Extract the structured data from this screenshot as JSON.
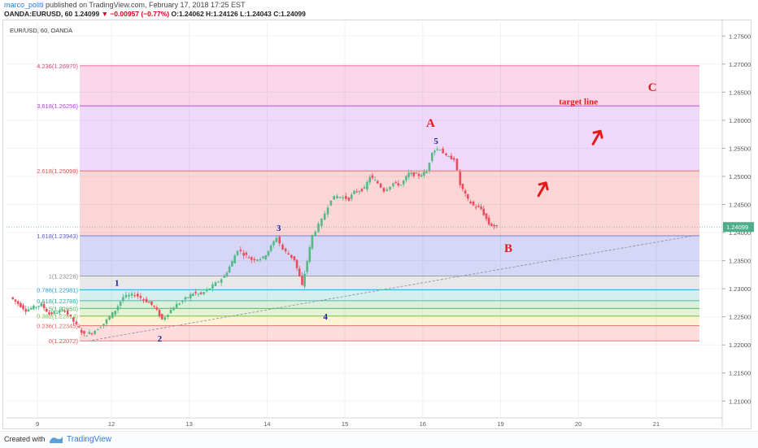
{
  "header": {
    "author": "marco_politi",
    "published": " published on TradingView.com, February 17, 2018 17:25 EST",
    "symbol": "OANDA:EURUSD, 60",
    "last": "1.24099",
    "change": "▼ −0.00957 (−0.77%)",
    "ohlc": "O:1.24062 H:1.24126 L:1.24043 C:1.24099"
  },
  "footer": {
    "created": "Created with",
    "brand": "TradingView"
  },
  "chart_data": {
    "type": "candlestick",
    "title": "EUR/USD, 60, OANDA",
    "ylim": [
      1.207,
      1.2775
    ],
    "y_ticks": [
      "1.27500",
      "1.27000",
      "1.26500",
      "1.26000",
      "1.25500",
      "1.25000",
      "1.24500",
      "1.24000",
      "1.23500",
      "1.23000",
      "1.22500",
      "1.22000",
      "1.21500",
      "1.21000"
    ],
    "x_ticks": [
      {
        "label": "9",
        "pos": -0.95
      },
      {
        "label": "12",
        "pos": 0
      },
      {
        "label": "13",
        "pos": 1
      },
      {
        "label": "14",
        "pos": 2
      },
      {
        "label": "15",
        "pos": 3
      },
      {
        "label": "16",
        "pos": 4
      },
      {
        "label": "19",
        "pos": 5
      },
      {
        "label": "20",
        "pos": 6
      },
      {
        "label": "21",
        "pos": 7
      }
    ],
    "last_price": {
      "label": "1.24099",
      "value": 1.24099,
      "color": "#4caf8a"
    },
    "fib_levels": [
      {
        "label": "0(1.22072)",
        "value": 1.22072,
        "color": "#e05050"
      },
      {
        "label": "0.236(1.22345)",
        "value": 1.22345,
        "color": "#e06060"
      },
      {
        "label": "0.382(1.22514)",
        "value": 1.22514,
        "color": "#7cbf3a"
      },
      {
        "label": "0.5(1.22650)",
        "value": 1.2265,
        "color": "#4caf50"
      },
      {
        "label": "0.618(1.22786)",
        "value": 1.22786,
        "color": "#26a69a"
      },
      {
        "label": "0.786(1.22981)",
        "value": 1.22981,
        "color": "#29a3c9"
      },
      {
        "label": "1(1.23228)",
        "value": 1.23228,
        "color": "#888888"
      },
      {
        "label": "1.618(1.23943)",
        "value": 1.23943,
        "color": "#5a5ad6"
      },
      {
        "label": "2.618(1.25099)",
        "value": 1.25099,
        "color": "#e05050"
      },
      {
        "label": "3.618(1.26256)",
        "value": 1.26256,
        "color": "#b03ad6"
      },
      {
        "label": "4.236(1.26970)",
        "value": 1.2697,
        "color": "#e0407a"
      }
    ],
    "fib_bands": [
      {
        "from": 1.22072,
        "to": 1.22345,
        "color": "rgba(240,80,80,0.20)"
      },
      {
        "from": 1.22345,
        "to": 1.22514,
        "color": "rgba(235,200,60,0.22)"
      },
      {
        "from": 1.22514,
        "to": 1.2265,
        "color": "rgba(120,200,60,0.22)"
      },
      {
        "from": 1.2265,
        "to": 1.22786,
        "color": "rgba(80,190,90,0.22)"
      },
      {
        "from": 1.22786,
        "to": 1.22981,
        "color": "rgba(60,180,170,0.22)"
      },
      {
        "from": 1.22981,
        "to": 1.23228,
        "color": "rgba(150,150,150,0.22)"
      },
      {
        "from": 1.23228,
        "to": 1.23943,
        "color": "rgba(90,90,220,0.25)"
      },
      {
        "from": 1.23943,
        "to": 1.25099,
        "color": "rgba(235,90,90,0.25)"
      },
      {
        "from": 1.25099,
        "to": 1.26256,
        "color": "rgba(180,80,230,0.22)"
      },
      {
        "from": 1.26256,
        "to": 1.2697,
        "color": "rgba(230,70,160,0.22)"
      }
    ],
    "candle_anchors": [
      [
        -1.3,
        1.2285
      ],
      [
        -1.1,
        1.2262
      ],
      [
        -0.9,
        1.2272
      ],
      [
        -0.8,
        1.2255
      ],
      [
        -0.6,
        1.2262
      ],
      [
        -0.45,
        1.2235
      ],
      [
        -0.35,
        1.2218
      ],
      [
        -0.25,
        1.2222
      ],
      [
        -0.1,
        1.2238
      ],
      [
        0.05,
        1.2262
      ],
      [
        0.15,
        1.2285
      ],
      [
        0.3,
        1.229
      ],
      [
        0.45,
        1.2278
      ],
      [
        0.55,
        1.2268
      ],
      [
        0.65,
        1.2245
      ],
      [
        0.8,
        1.2268
      ],
      [
        0.95,
        1.2282
      ],
      [
        1.05,
        1.2292
      ],
      [
        1.15,
        1.229
      ],
      [
        1.3,
        1.2305
      ],
      [
        1.45,
        1.2322
      ],
      [
        1.55,
        1.2348
      ],
      [
        1.62,
        1.237
      ],
      [
        1.7,
        1.2362
      ],
      [
        1.8,
        1.2352
      ],
      [
        1.95,
        1.2355
      ],
      [
        2.05,
        1.2375
      ],
      [
        2.12,
        1.2392
      ],
      [
        2.2,
        1.237
      ],
      [
        2.35,
        1.2352
      ],
      [
        2.45,
        1.2305
      ],
      [
        2.58,
        1.2395
      ],
      [
        2.7,
        1.2422
      ],
      [
        2.82,
        1.246
      ],
      [
        2.9,
        1.2465
      ],
      [
        3.05,
        1.246
      ],
      [
        3.12,
        1.2472
      ],
      [
        3.25,
        1.2478
      ],
      [
        3.32,
        1.25
      ],
      [
        3.42,
        1.2488
      ],
      [
        3.5,
        1.2475
      ],
      [
        3.62,
        1.2488
      ],
      [
        3.72,
        1.2485
      ],
      [
        3.82,
        1.2505
      ],
      [
        3.95,
        1.2502
      ],
      [
        4.05,
        1.2508
      ],
      [
        4.12,
        1.2545
      ],
      [
        4.22,
        1.255
      ],
      [
        4.3,
        1.2535
      ],
      [
        4.4,
        1.2532
      ],
      [
        4.48,
        1.2485
      ],
      [
        4.58,
        1.2458
      ],
      [
        4.65,
        1.2448
      ],
      [
        4.75,
        1.2442
      ],
      [
        4.85,
        1.2415
      ],
      [
        4.95,
        1.241
      ]
    ],
    "wave_labels": [
      {
        "text": "1",
        "x": 0.07,
        "y": 1.2305,
        "color": "#1a1aa8"
      },
      {
        "text": "2",
        "x": 0.62,
        "y": 1.2206,
        "color": "#1a1aa8"
      },
      {
        "text": "3",
        "x": 2.15,
        "y": 1.2403,
        "color": "#1a1aa8"
      },
      {
        "text": "4",
        "x": 2.75,
        "y": 1.2245,
        "color": "#1a1aa8"
      },
      {
        "text": "5",
        "x": 4.17,
        "y": 1.2558,
        "color": "#1a1aa8"
      }
    ],
    "annotations": [
      {
        "text": "A",
        "x": 4.1,
        "y": 1.2588,
        "color": "#e41a1a"
      },
      {
        "text": "B",
        "x": 5.1,
        "y": 1.2365,
        "color": "#e41a1a"
      },
      {
        "text": "C",
        "x": 6.95,
        "y": 1.2652,
        "color": "#e41a1a"
      },
      {
        "text": "target line",
        "x": 6.0,
        "y": 1.2628,
        "color": "#e41a1a"
      }
    ],
    "arrows": [
      {
        "x": 5.55,
        "y": 1.248,
        "color": "#e41a1a"
      },
      {
        "x": 6.25,
        "y": 1.2572,
        "color": "#e41a1a"
      }
    ],
    "trend_line": {
      "from": [
        -0.3,
        1.2207
      ],
      "to": [
        7.5,
        1.2395
      ],
      "color": "#8a8aa0"
    }
  }
}
